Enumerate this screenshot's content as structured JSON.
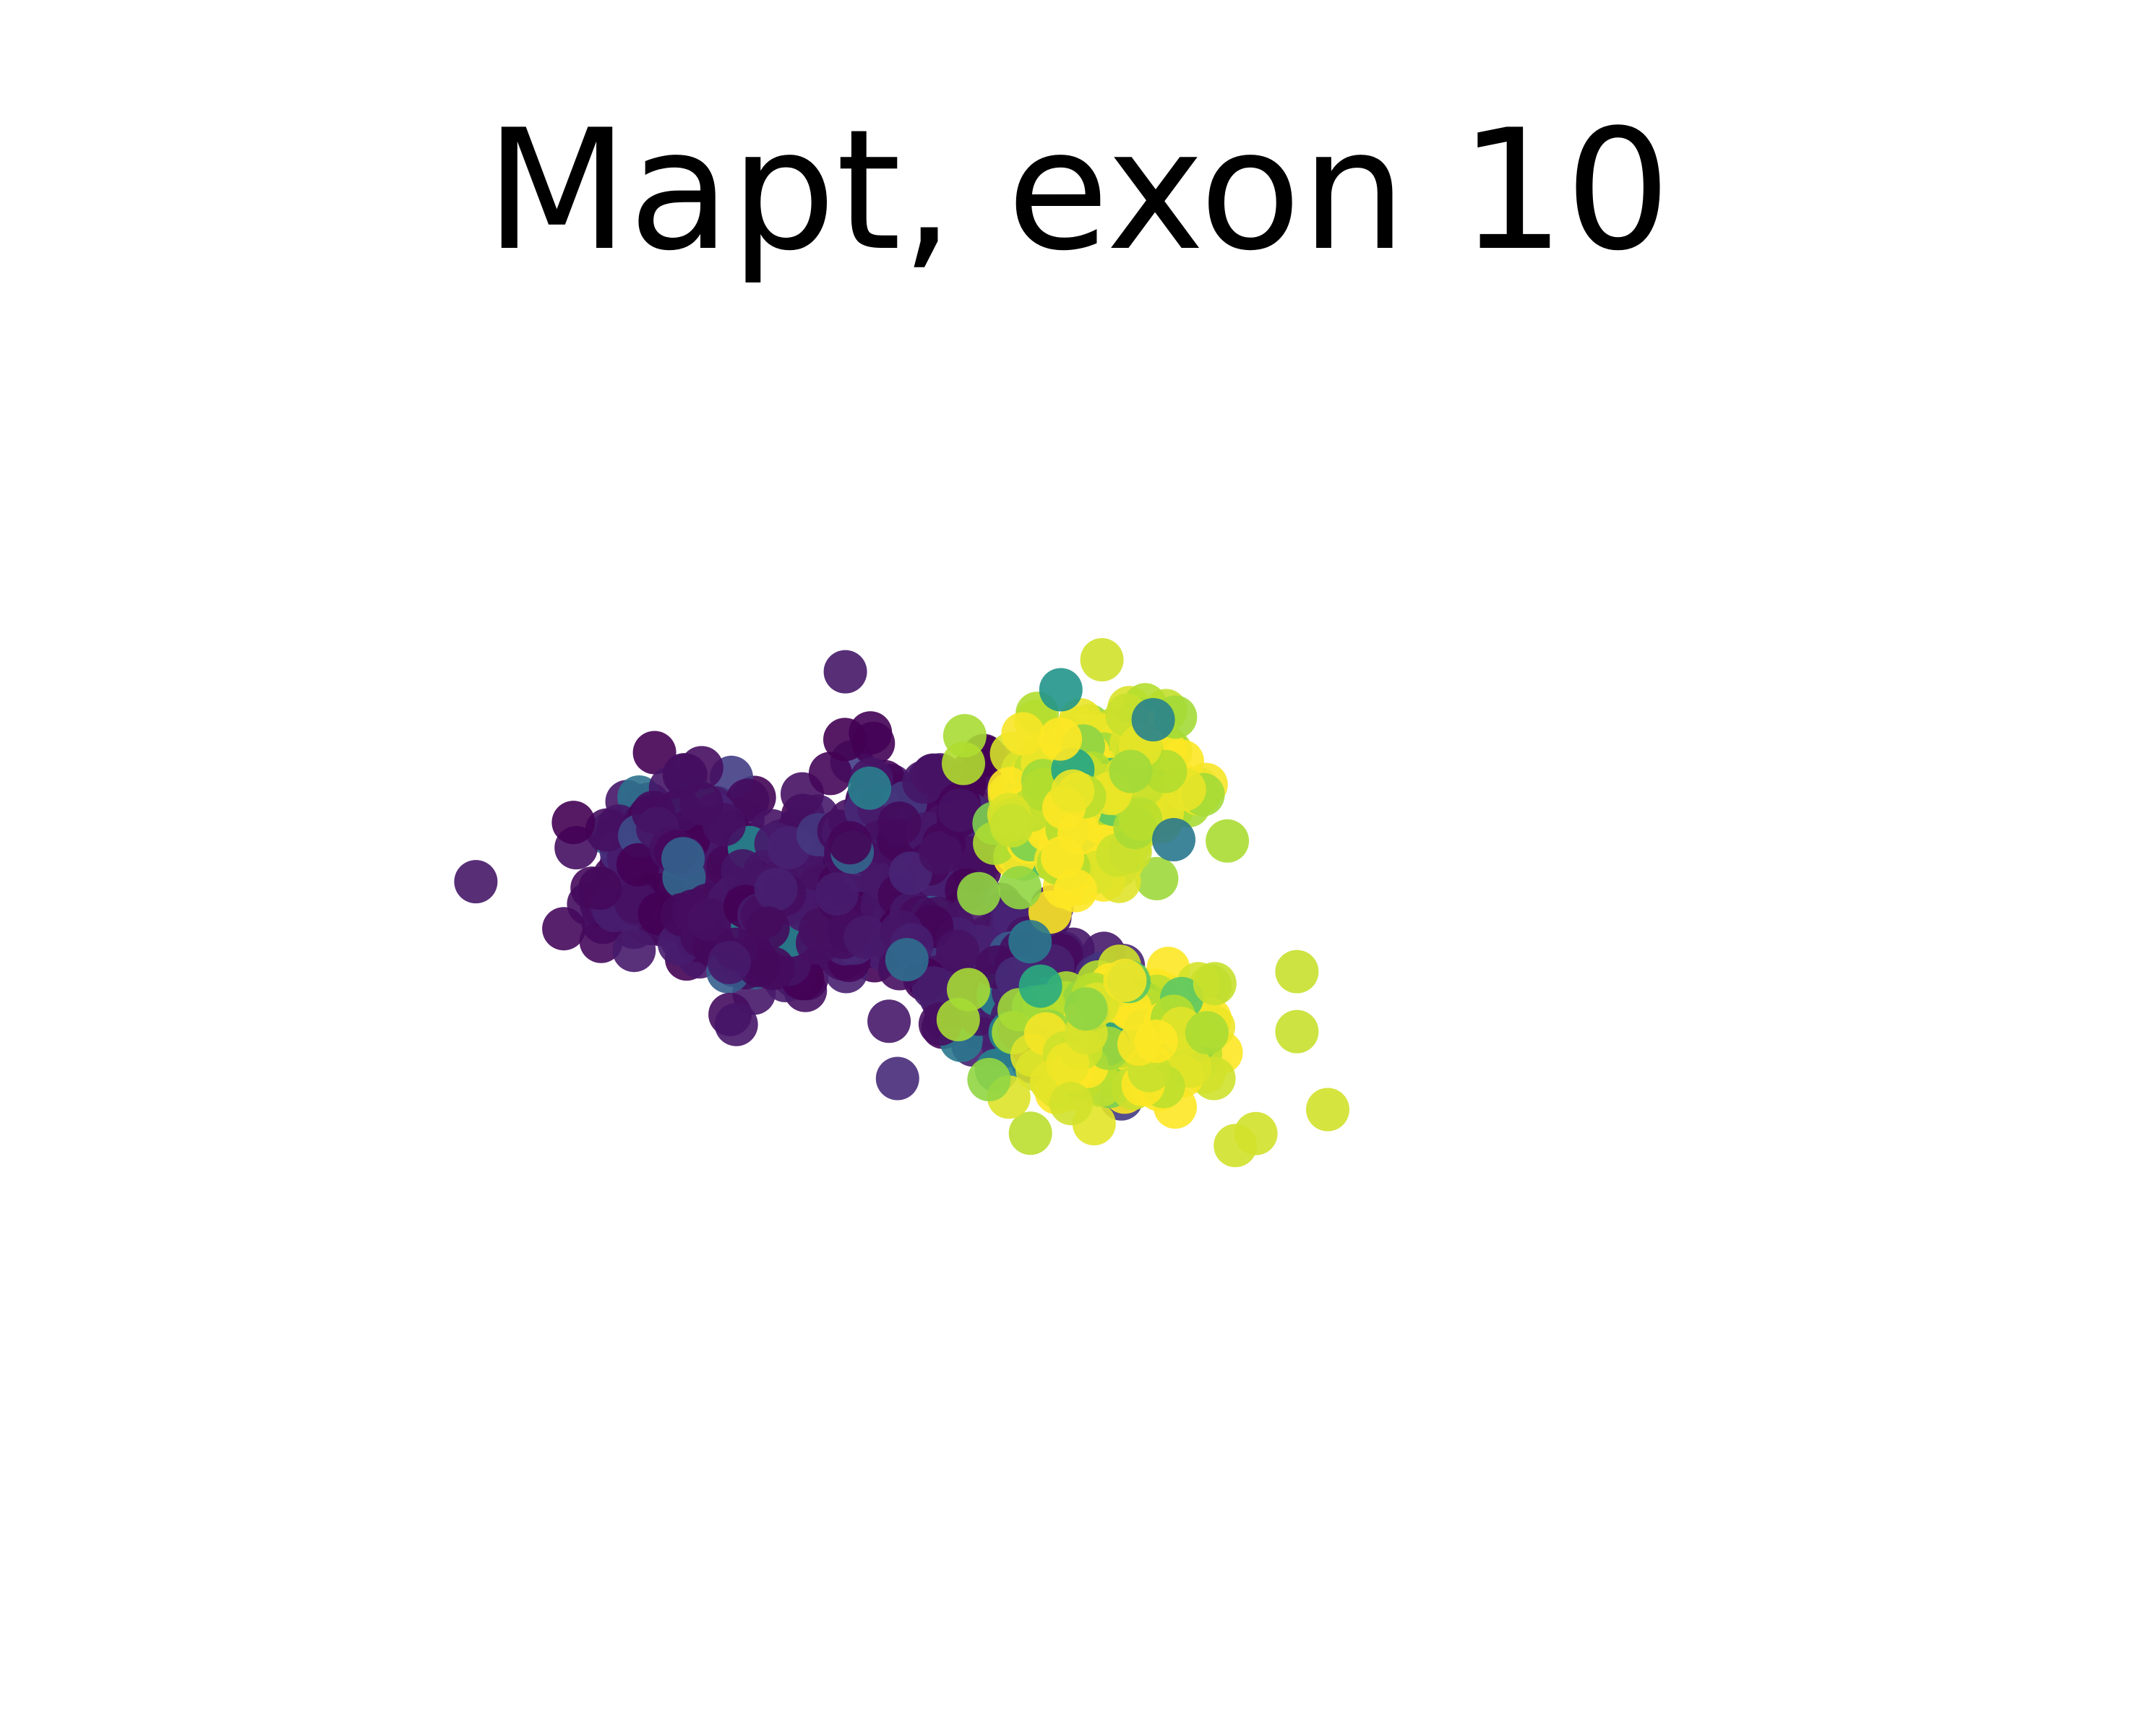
{
  "chart_data": {
    "type": "scatter",
    "title": "Mapt, exon 10",
    "xlabel": "",
    "ylabel": "",
    "axes_visible": false,
    "grid": false,
    "colormap": "viridis",
    "clim": [
      0,
      1
    ],
    "xlim": [
      0,
      100
    ],
    "ylim": [
      0,
      100
    ],
    "clusters": [
      {
        "cx": 22,
        "cy": 45,
        "sx": 4.2,
        "sy": 6.0,
        "n": 230,
        "value": 0.05
      },
      {
        "cx": 33,
        "cy": 52,
        "sx": 4.2,
        "sy": 6.0,
        "n": 200,
        "value": 0.06
      },
      {
        "cx": 44,
        "cy": 40,
        "sx": 4.0,
        "sy": 7.0,
        "n": 210,
        "value": 0.05
      },
      {
        "cx": 52,
        "cy": 62,
        "sx": 4.5,
        "sy": 5.0,
        "n": 150,
        "value": 0.08
      },
      {
        "cx": 60,
        "cy": 70,
        "sx": 3.5,
        "sy": 4.0,
        "n": 60,
        "value": 0.15
      },
      {
        "cx": 62,
        "cy": 33,
        "sx": 4.0,
        "sy": 6.0,
        "n": 300,
        "value": 0.97
      },
      {
        "cx": 65,
        "cy": 73,
        "sx": 3.8,
        "sy": 5.0,
        "n": 170,
        "value": 0.96
      }
    ],
    "points": [
      {
        "x": 2,
        "y": 47,
        "value": 0.08
      },
      {
        "x": 38,
        "y": 12,
        "value": 0.08
      },
      {
        "x": 24,
        "y": 28,
        "value": 0.05
      },
      {
        "x": 24,
        "y": 34,
        "value": 0.05
      },
      {
        "x": 74,
        "y": 64,
        "value": 0.95
      },
      {
        "x": 76,
        "y": 91,
        "value": 0.96
      },
      {
        "x": 60,
        "y": 84,
        "value": 0.96
      },
      {
        "x": 78,
        "y": 89,
        "value": 0.96
      },
      {
        "x": 85,
        "y": 85,
        "value": 0.96
      },
      {
        "x": 82,
        "y": 72,
        "value": 0.95
      },
      {
        "x": 59,
        "y": 15,
        "value": 0.65
      },
      {
        "x": 63,
        "y": 10,
        "value": 0.96
      },
      {
        "x": 82,
        "y": 62,
        "value": 0.95
      },
      {
        "x": 52,
        "y": 80,
        "value": 0.9
      },
      {
        "x": 49,
        "y": 70,
        "value": 0.92
      },
      {
        "x": 50,
        "y": 65,
        "value": 0.92
      },
      {
        "x": 55,
        "y": 48,
        "value": 0.9
      },
      {
        "x": 51,
        "y": 49,
        "value": 0.9
      },
      {
        "x": 44,
        "y": 60,
        "value": 0.45
      },
      {
        "x": 56,
        "y": 57,
        "value": 0.5
      },
      {
        "x": 68,
        "y": 20,
        "value": 0.55
      },
      {
        "x": 70,
        "y": 40,
        "value": 0.5
      }
    ]
  }
}
